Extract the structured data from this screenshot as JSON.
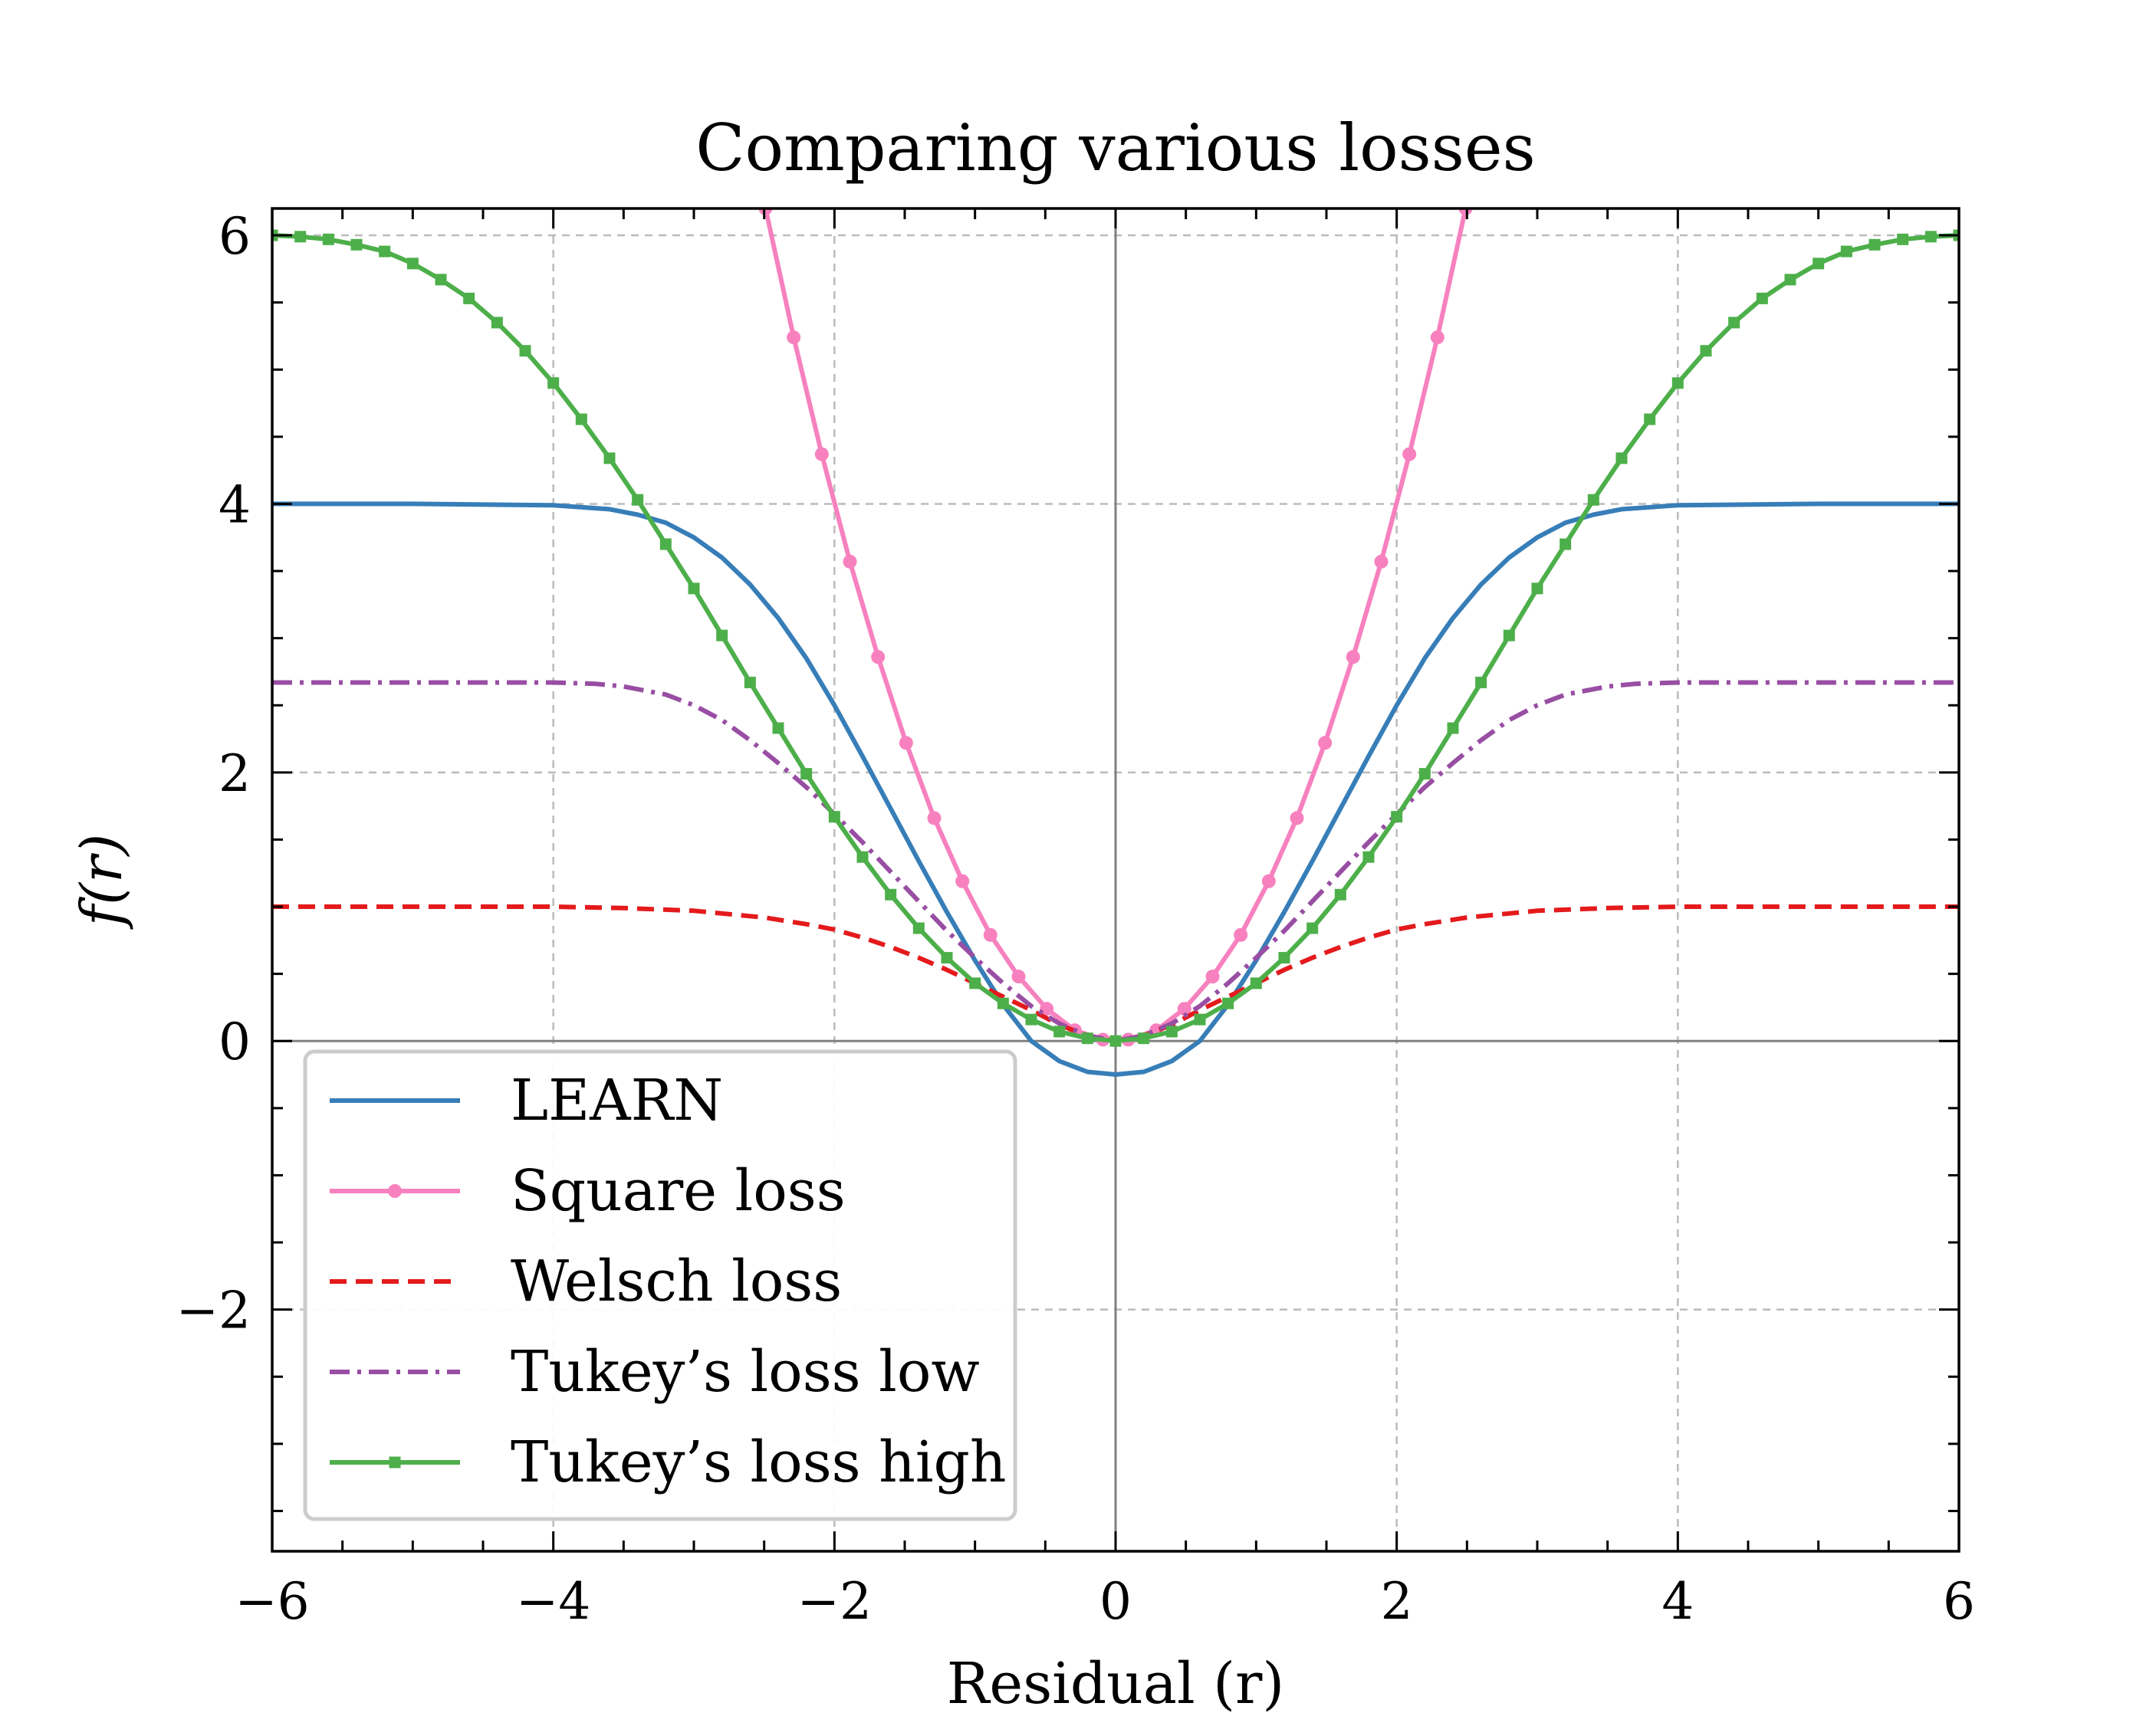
{
  "chart_data": {
    "type": "line",
    "title": "Comparing various losses",
    "xlabel": "Residual (r)",
    "ylabel": "f(r)",
    "xlim": [
      -6,
      6
    ],
    "ylim": [
      -3.8,
      6.2
    ],
    "xticks": [
      -6,
      -4,
      -2,
      0,
      2,
      4,
      6
    ],
    "xtick_labels": [
      "−6",
      "−4",
      "−2",
      "0",
      "2",
      "4",
      "6"
    ],
    "yticks": [
      -2,
      0,
      2,
      4,
      6
    ],
    "ytick_labels": [
      "−2",
      "0",
      "2",
      "4",
      "6"
    ],
    "grid": true,
    "legend_position": "lower-left",
    "series": [
      {
        "name": "LEARN",
        "color": "#377eb8",
        "style": "solid",
        "marker": "none",
        "x": [
          -6,
          -5,
          -4,
          -3.6,
          -3.4,
          -3.2,
          -3.0,
          -2.8,
          -2.6,
          -2.4,
          -2.2,
          -2.0,
          -1.8,
          -1.6,
          -1.4,
          -1.2,
          -1.0,
          -0.8,
          -0.6,
          -0.4,
          -0.2,
          0.0,
          0.2,
          0.4,
          0.6,
          0.8,
          1.0,
          1.2,
          1.4,
          1.6,
          1.8,
          2.0,
          2.2,
          2.4,
          2.6,
          2.8,
          3.0,
          3.2,
          3.4,
          3.6,
          4,
          5,
          6
        ],
        "y": [
          4.0,
          4.0,
          3.99,
          3.96,
          3.92,
          3.86,
          3.75,
          3.6,
          3.4,
          3.15,
          2.85,
          2.5,
          2.12,
          1.73,
          1.34,
          0.96,
          0.6,
          0.27,
          0.0,
          -0.15,
          -0.23,
          -0.25,
          -0.23,
          -0.15,
          0.0,
          0.27,
          0.6,
          0.96,
          1.34,
          1.73,
          2.12,
          2.5,
          2.85,
          3.15,
          3.4,
          3.6,
          3.75,
          3.86,
          3.92,
          3.96,
          3.99,
          4.0,
          4.0
        ]
      },
      {
        "name": "Square loss",
        "color": "#f781bf",
        "style": "solid",
        "marker": "circle",
        "x": [
          -2.49,
          -2.29,
          -2.09,
          -1.89,
          -1.69,
          -1.49,
          -1.29,
          -1.09,
          -0.89,
          -0.69,
          -0.49,
          -0.29,
          -0.09,
          0.09,
          0.29,
          0.49,
          0.69,
          0.89,
          1.09,
          1.29,
          1.49,
          1.69,
          1.89,
          2.09,
          2.29,
          2.49
        ],
        "y": [
          6.2,
          5.24,
          4.37,
          3.57,
          2.86,
          2.22,
          1.66,
          1.19,
          0.79,
          0.48,
          0.24,
          0.08,
          0.01,
          0.01,
          0.08,
          0.24,
          0.48,
          0.79,
          1.19,
          1.66,
          2.22,
          2.86,
          3.57,
          4.37,
          5.24,
          6.2
        ]
      },
      {
        "name": "Welsch loss",
        "color": "#e41a1c",
        "style": "dashed",
        "marker": "none",
        "x": [
          -6,
          -5,
          -4,
          -3.5,
          -3,
          -2.5,
          -2.2,
          -2.0,
          -1.8,
          -1.6,
          -1.4,
          -1.2,
          -1.0,
          -0.8,
          -0.6,
          -0.4,
          -0.2,
          0,
          0.2,
          0.4,
          0.6,
          0.8,
          1.0,
          1.2,
          1.4,
          1.6,
          1.8,
          2.0,
          2.2,
          2.5,
          3,
          3.5,
          4,
          5,
          6
        ],
        "y": [
          1.0,
          1.0,
          1.0,
          0.99,
          0.97,
          0.92,
          0.87,
          0.83,
          0.77,
          0.7,
          0.62,
          0.53,
          0.43,
          0.33,
          0.23,
          0.12,
          0.04,
          0,
          0.04,
          0.12,
          0.23,
          0.33,
          0.43,
          0.53,
          0.62,
          0.7,
          0.77,
          0.83,
          0.87,
          0.92,
          0.97,
          0.99,
          1.0,
          1.0,
          1.0
        ]
      },
      {
        "name": "Tukey’s loss low",
        "color": "#984ea3",
        "style": "dashdot",
        "marker": "none",
        "x": [
          -6,
          -5,
          -4.3,
          -4,
          -3.7,
          -3.5,
          -3.2,
          -3.0,
          -2.8,
          -2.6,
          -2.4,
          -2.2,
          -2.0,
          -1.8,
          -1.6,
          -1.4,
          -1.2,
          -1.0,
          -0.8,
          -0.6,
          -0.4,
          -0.2,
          0,
          0.2,
          0.4,
          0.6,
          0.8,
          1.0,
          1.2,
          1.4,
          1.6,
          1.8,
          2.0,
          2.2,
          2.4,
          2.6,
          2.8,
          3.0,
          3.2,
          3.5,
          3.7,
          4,
          4.3,
          5,
          6
        ],
        "y": [
          2.67,
          2.67,
          2.67,
          2.67,
          2.66,
          2.64,
          2.58,
          2.5,
          2.39,
          2.24,
          2.07,
          1.89,
          1.69,
          1.48,
          1.26,
          1.04,
          0.82,
          0.62,
          0.43,
          0.26,
          0.13,
          0.04,
          0,
          0.04,
          0.13,
          0.26,
          0.43,
          0.62,
          0.82,
          1.04,
          1.26,
          1.48,
          1.69,
          1.89,
          2.07,
          2.24,
          2.39,
          2.5,
          2.58,
          2.64,
          2.66,
          2.67,
          2.67,
          2.67,
          2.67
        ]
      },
      {
        "name": "Tukey’s loss high",
        "color": "#4daf4a",
        "style": "solid",
        "marker": "square",
        "x": [
          -6.0,
          -5.8,
          -5.6,
          -5.4,
          -5.2,
          -5.0,
          -4.8,
          -4.6,
          -4.4,
          -4.2,
          -4.0,
          -3.8,
          -3.6,
          -3.4,
          -3.2,
          -3.0,
          -2.8,
          -2.6,
          -2.4,
          -2.2,
          -2.0,
          -1.8,
          -1.6,
          -1.4,
          -1.2,
          -1.0,
          -0.8,
          -0.6,
          -0.4,
          -0.2,
          0.0,
          0.2,
          0.4,
          0.6,
          0.8,
          1.0,
          1.2,
          1.4,
          1.6,
          1.8,
          2.0,
          2.2,
          2.4,
          2.6,
          2.8,
          3.0,
          3.2,
          3.4,
          3.6,
          3.8,
          4.0,
          4.2,
          4.4,
          4.6,
          4.8,
          5.0,
          5.2,
          5.4,
          5.6,
          5.8,
          6.0
        ],
        "y": [
          6.0,
          5.99,
          5.97,
          5.93,
          5.88,
          5.79,
          5.67,
          5.53,
          5.35,
          5.14,
          4.9,
          4.63,
          4.34,
          4.03,
          3.7,
          3.37,
          3.02,
          2.67,
          2.33,
          1.99,
          1.67,
          1.37,
          1.09,
          0.84,
          0.62,
          0.43,
          0.28,
          0.16,
          0.07,
          0.02,
          0.0,
          0.02,
          0.07,
          0.16,
          0.28,
          0.43,
          0.62,
          0.84,
          1.09,
          1.37,
          1.67,
          1.99,
          2.33,
          2.67,
          3.02,
          3.37,
          3.7,
          4.03,
          4.34,
          4.63,
          4.9,
          5.14,
          5.35,
          5.53,
          5.67,
          5.79,
          5.88,
          5.93,
          5.97,
          5.99,
          6.0
        ]
      }
    ]
  }
}
